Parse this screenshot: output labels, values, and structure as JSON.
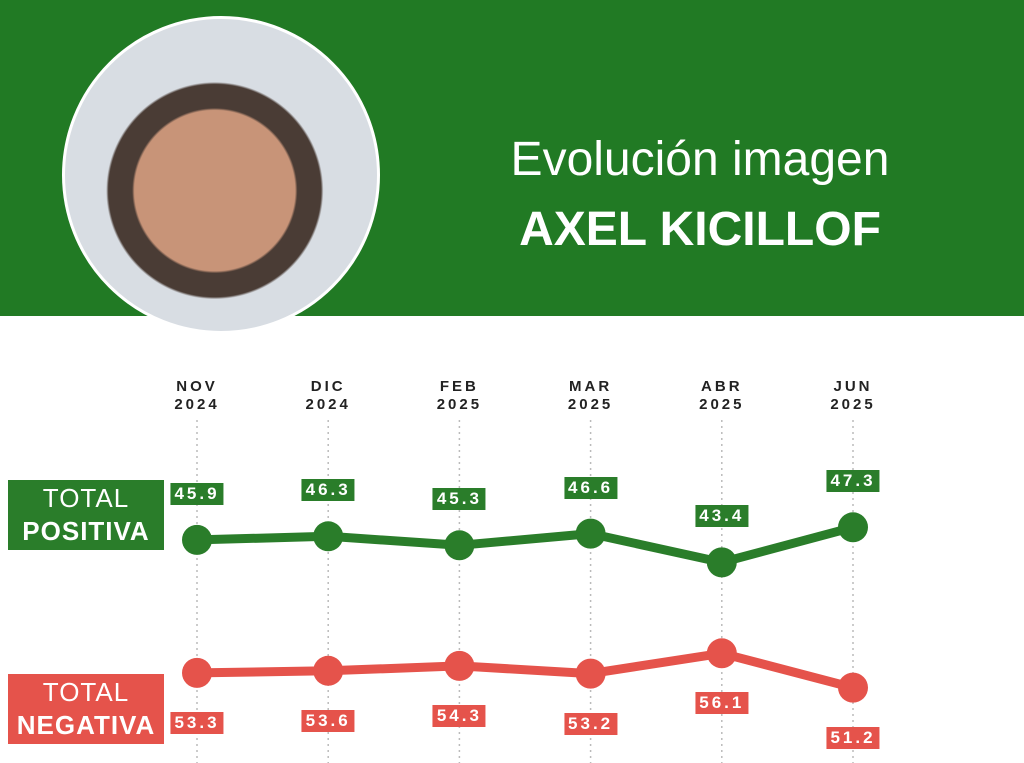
{
  "header": {
    "title": "Evolución imagen",
    "name": "AXEL KICILLOF"
  },
  "chart_data": {
    "type": "line",
    "categories": [
      "NOV 2024",
      "DIC 2024",
      "FEB 2025",
      "MAR 2025",
      "ABR 2025",
      "JUN 2025"
    ],
    "ylim": [
      40,
      50
    ],
    "y2lim": [
      50,
      60
    ],
    "series": [
      {
        "name": "TOTAL POSITIVA",
        "color": "#2a7d2a",
        "values": [
          45.9,
          46.3,
          45.3,
          46.6,
          43.4,
          47.3
        ]
      },
      {
        "name": "TOTAL NEGATIVA",
        "color": "#e5534b",
        "axis": "y2",
        "values": [
          53.3,
          53.6,
          54.3,
          53.2,
          56.1,
          51.2
        ]
      }
    ]
  }
}
